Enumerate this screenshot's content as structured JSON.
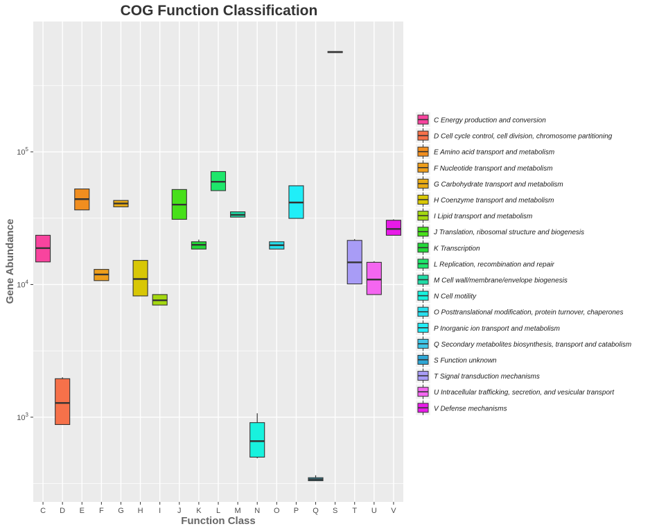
{
  "chart_data": {
    "type": "box",
    "title": "COG Function Classification",
    "xlabel": "Function Class",
    "ylabel": "Gene Abundance",
    "y_scale": "log10",
    "ylim": [
      230,
      960000
    ],
    "y_ticks": [
      {
        "value": 1000,
        "base": "10",
        "exp": "3"
      },
      {
        "value": 10000,
        "base": "10",
        "exp": "4"
      },
      {
        "value": 100000,
        "base": "10",
        "exp": "5"
      }
    ],
    "grid": true,
    "legend_position": "right",
    "categories": [
      "C",
      "D",
      "E",
      "F",
      "G",
      "H",
      "I",
      "J",
      "K",
      "L",
      "M",
      "N",
      "O",
      "P",
      "Q",
      "S",
      "T",
      "U",
      "V"
    ],
    "boxes": [
      {
        "cat": "C",
        "min": 14800,
        "q1": 14800,
        "median": 18800,
        "q3": 23500,
        "max": 23500,
        "color": "#F8449E",
        "legend": "C Energy production and conversion"
      },
      {
        "cat": "D",
        "min": 880,
        "q1": 880,
        "median": 1280,
        "q3": 1950,
        "max": 2000,
        "color": "#F6714A",
        "legend": "D Cell cycle control, cell division, chromosome partitioning"
      },
      {
        "cat": "E",
        "min": 36500,
        "q1": 36500,
        "median": 44000,
        "q3": 52500,
        "max": 52500,
        "color": "#F18E1F",
        "legend": "E Amino acid transport and metabolism"
      },
      {
        "cat": "F",
        "min": 10700,
        "q1": 10700,
        "median": 11900,
        "q3": 13000,
        "max": 13000,
        "color": "#EE9E1B",
        "legend": "F Nucleotide transport and metabolism"
      },
      {
        "cat": "G",
        "min": 38500,
        "q1": 38500,
        "median": 40800,
        "q3": 43000,
        "max": 43000,
        "color": "#E9AB14",
        "legend": "G Carbohydrate transport and metabolism"
      },
      {
        "cat": "H",
        "min": 8200,
        "q1": 8200,
        "median": 11000,
        "q3": 15200,
        "max": 15200,
        "color": "#D8C705",
        "legend": "H Coenzyme transport and metabolism"
      },
      {
        "cat": "I",
        "min": 7000,
        "q1": 7000,
        "median": 7600,
        "q3": 8400,
        "max": 8400,
        "color": "#A4D810",
        "legend": "I Lipid transport and metabolism"
      },
      {
        "cat": "J",
        "min": 31000,
        "q1": 31000,
        "median": 40000,
        "q3": 52000,
        "max": 52000,
        "color": "#47E01A",
        "legend": "J Translation, ribosomal structure and biogenesis"
      },
      {
        "cat": "K",
        "min": 18500,
        "q1": 18500,
        "median": 19900,
        "q3": 21000,
        "max": 21800,
        "color": "#23D837",
        "legend": "K Transcription"
      },
      {
        "cat": "L",
        "min": 51000,
        "q1": 51000,
        "median": 59500,
        "q3": 71000,
        "max": 71000,
        "color": "#1EE66B",
        "legend": "L Replication, recombination and repair"
      },
      {
        "cat": "M",
        "min": 32200,
        "q1": 32200,
        "median": 33500,
        "q3": 35300,
        "max": 35300,
        "color": "#20DCA6",
        "legend": "M Cell wall/membrane/envelope biogenesis"
      },
      {
        "cat": "N",
        "min": 490,
        "q1": 500,
        "median": 660,
        "q3": 910,
        "max": 1070,
        "color": "#18F2DE",
        "legend": "N Cell motility"
      },
      {
        "cat": "O",
        "min": 18500,
        "q1": 18500,
        "median": 19800,
        "q3": 21000,
        "max": 21000,
        "color": "#27E0EE",
        "legend": "O Posttranslational modification, protein turnover, chaperones"
      },
      {
        "cat": "P",
        "min": 31500,
        "q1": 31500,
        "median": 41500,
        "q3": 55500,
        "max": 55500,
        "color": "#20EEF8",
        "legend": "P Inorganic ion transport and metabolism"
      },
      {
        "cat": "Q",
        "min": 330,
        "q1": 332,
        "median": 340,
        "q3": 350,
        "max": 365,
        "color": "#3FC6E8",
        "legend": "Q Secondary metabolites biosynthesis, transport and catabolism"
      },
      {
        "cat": "S",
        "min": 560000,
        "q1": 560000,
        "median": 565000,
        "q3": 570000,
        "max": 570000,
        "color": "#2EA6D4",
        "legend": "S Function unknown"
      },
      {
        "cat": "T",
        "min": 10100,
        "q1": 10100,
        "median": 14700,
        "q3": 21500,
        "max": 22000,
        "color": "#A89CF6",
        "legend": "T Signal transduction mechanisms"
      },
      {
        "cat": "U",
        "min": 8400,
        "q1": 8400,
        "median": 10900,
        "q3": 14700,
        "max": 15000,
        "color": "#F466F0",
        "legend": "U Intracellular trafficking, secretion, and vesicular transport"
      },
      {
        "cat": "V",
        "min": 23500,
        "q1": 23500,
        "median": 26200,
        "q3": 30500,
        "max": 31000,
        "color": "#E81AE8",
        "legend": "V Defense mechanisms"
      }
    ]
  }
}
